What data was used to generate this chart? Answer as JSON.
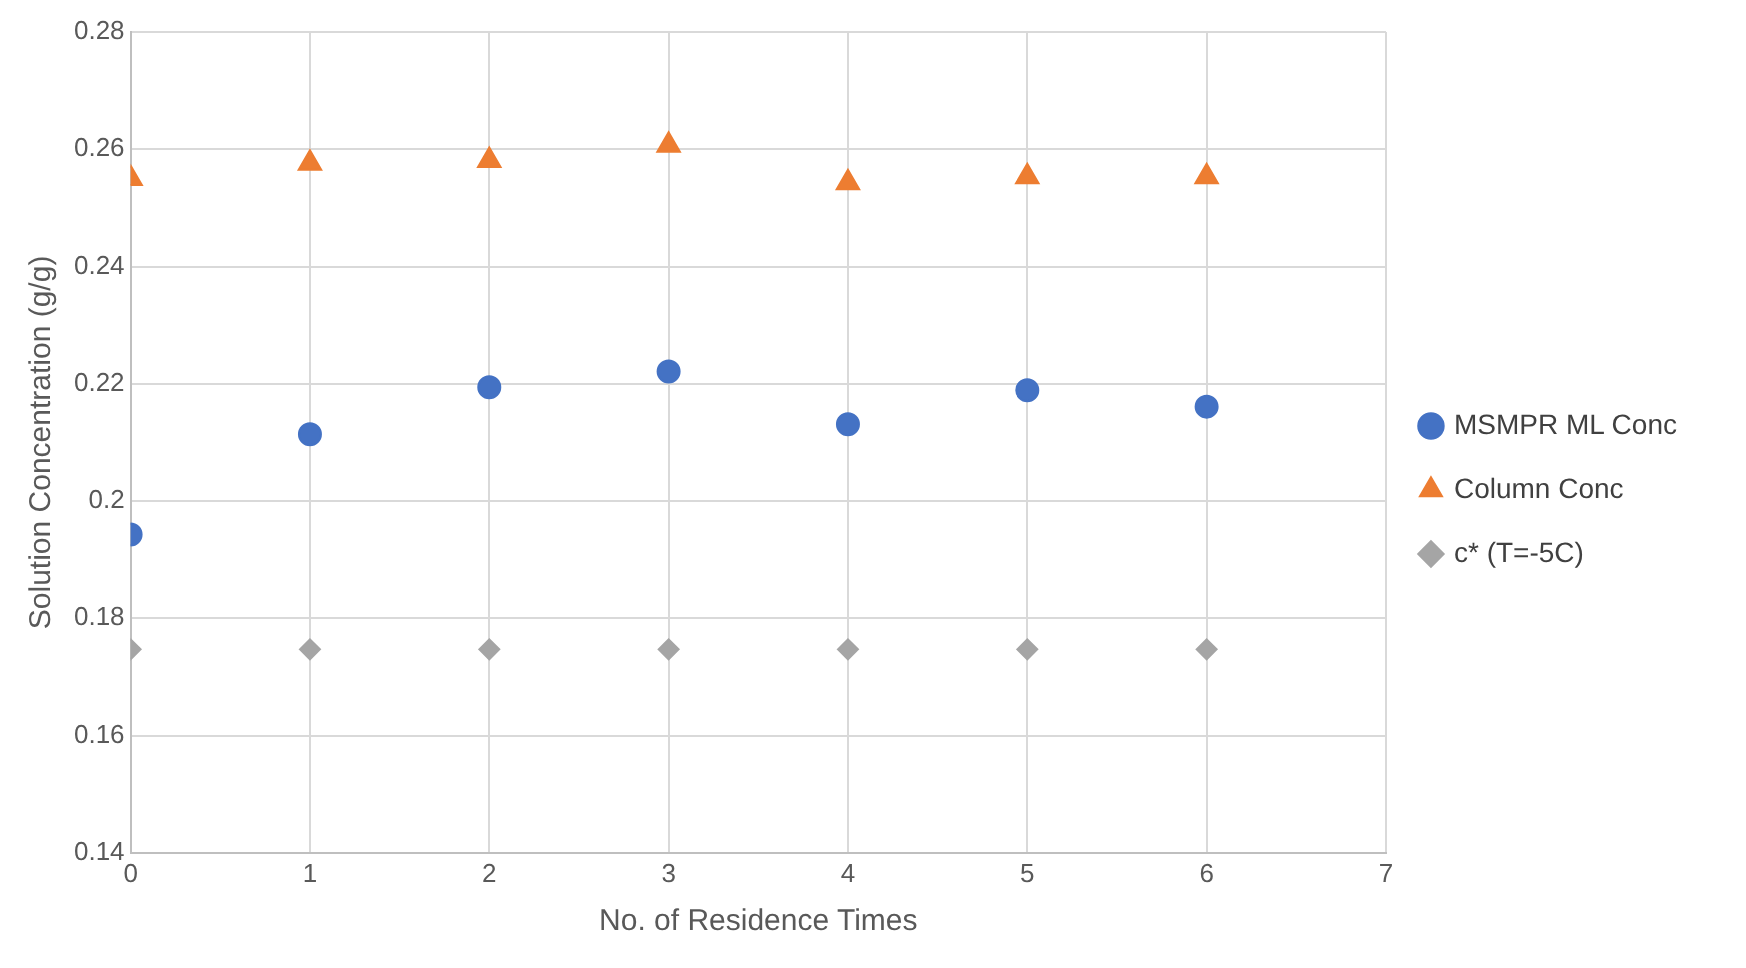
{
  "chart_data": {
    "type": "scatter",
    "xlabel": "No. of Residence Times",
    "ylabel": "Solution Concentration (g/g)",
    "x": [
      0,
      1,
      2,
      3,
      4,
      5,
      6
    ],
    "series": [
      {
        "name": "MSMPR ML Conc",
        "color": "#4472c4",
        "marker": "circle",
        "values": [
          0.1943,
          0.2114,
          0.2194,
          0.2221,
          0.2131,
          0.2189,
          0.2161
        ]
      },
      {
        "name": "Column Conc",
        "color": "#ed7d31",
        "marker": "triangle",
        "values": [
          0.255,
          0.2576,
          0.2581,
          0.2607,
          0.2543,
          0.2553,
          0.2553
        ]
      },
      {
        "name": "c* (T=-5C)",
        "color": "#a5a5a5",
        "marker": "diamond",
        "values": [
          0.1747,
          0.1747,
          0.1747,
          0.1747,
          0.1747,
          0.1747,
          0.1747
        ]
      }
    ],
    "xlim": [
      0,
      7
    ],
    "xticks": [
      0,
      1,
      2,
      3,
      4,
      5,
      6,
      7
    ],
    "ylim": [
      0.14,
      0.28
    ],
    "yticks": [
      0.14,
      0.16,
      0.18,
      0.2,
      0.22,
      0.24,
      0.26,
      0.28
    ],
    "grid": true,
    "legend": "right"
  }
}
